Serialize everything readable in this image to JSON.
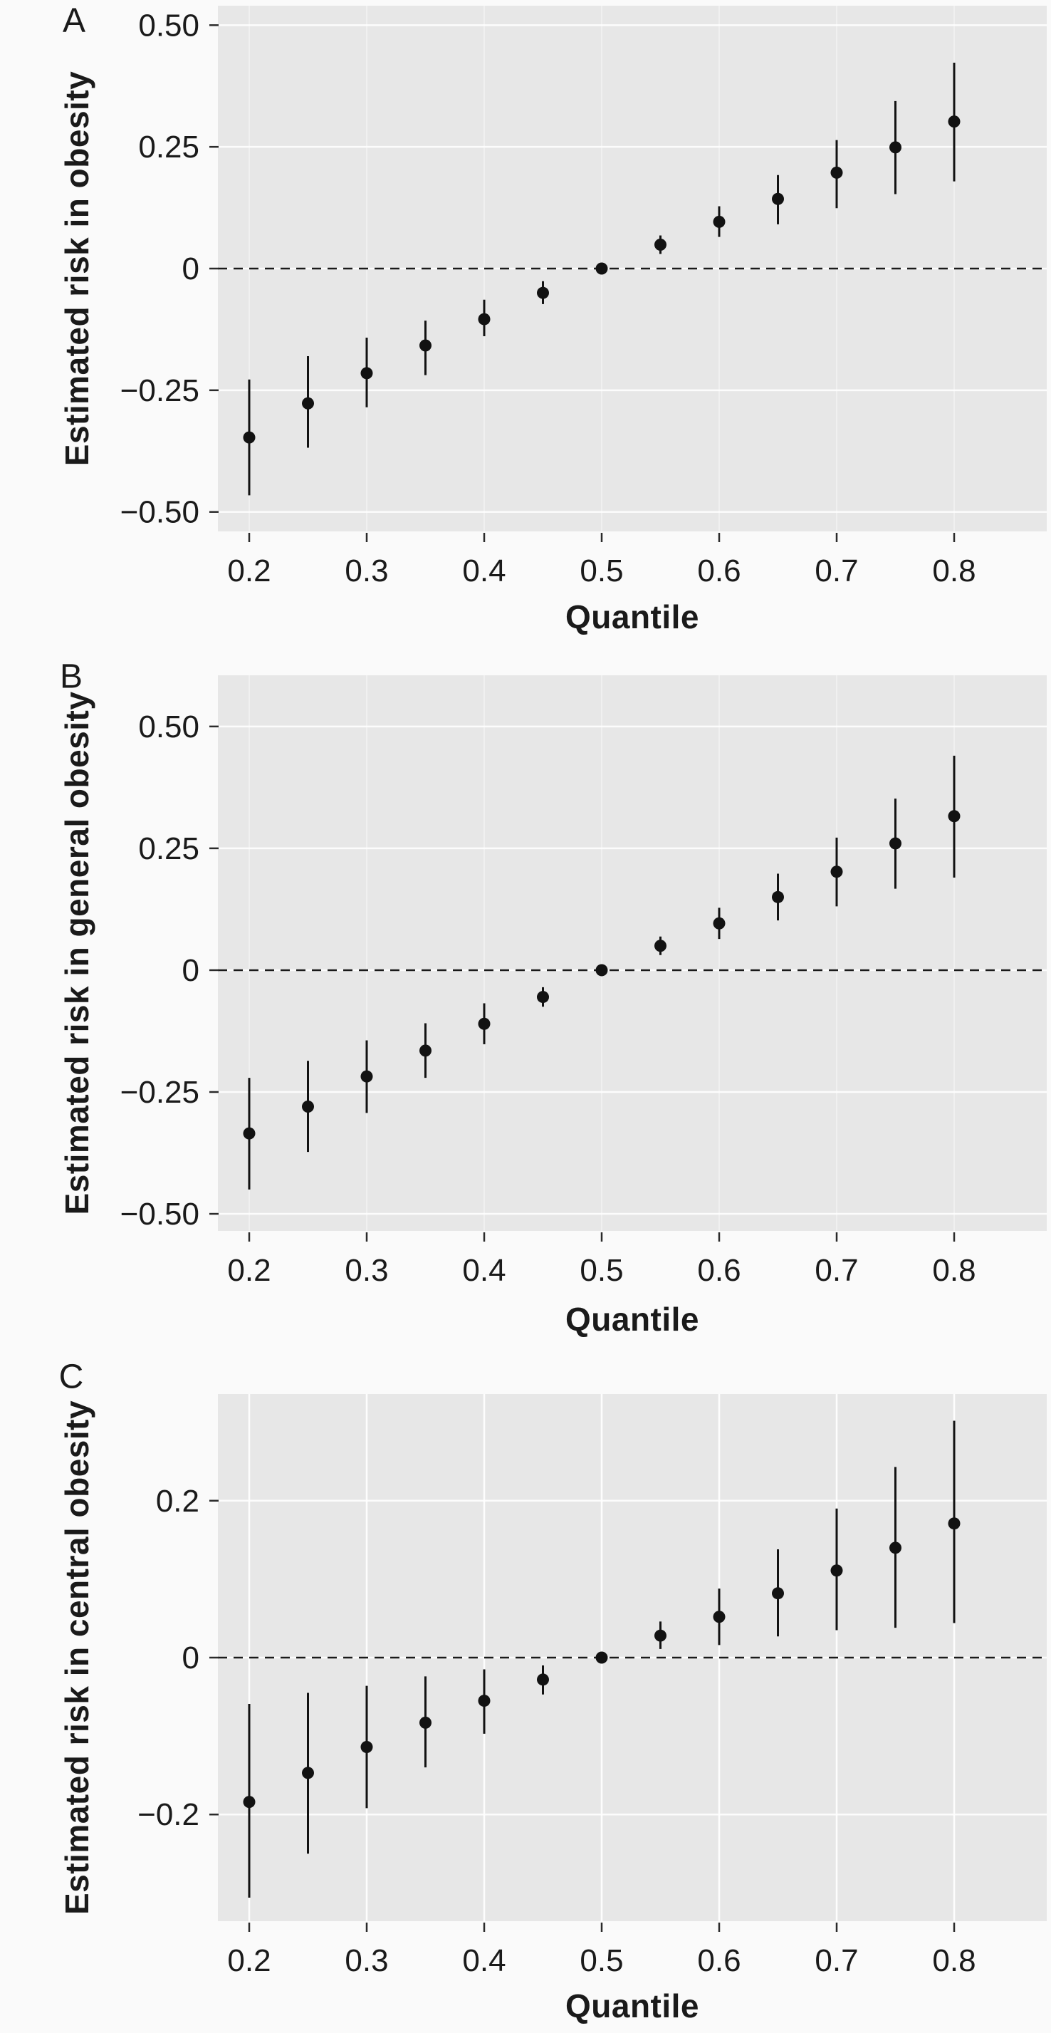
{
  "style": {
    "page_bg": "#fafafa",
    "panel_bg": "#e7e7e7",
    "grid_color": "#ffffff",
    "point_color": "#121212",
    "tick_color": "#2b2b2b",
    "text_color": "#1a1a1a"
  },
  "chart_data": [
    {
      "panel": "A",
      "type": "scatter",
      "title": "",
      "xlabel": "Quantile",
      "ylabel": "Estimated risk in obesity",
      "grid": true,
      "legend": null,
      "zero_line": "dashed",
      "xlim": [
        0.173,
        0.879
      ],
      "ylim": [
        -0.54,
        0.54
      ],
      "x_ticks": [
        0.2,
        0.3,
        0.4,
        0.5,
        0.6,
        0.7,
        0.8
      ],
      "x_tick_labels": [
        "0.2",
        "0.3",
        "0.4",
        "0.5",
        "0.6",
        "0.7",
        "0.8"
      ],
      "y_tick_values": [
        0.5,
        0.25,
        0,
        -0.25,
        -0.5
      ],
      "y_tick_labels": [
        "0.50",
        "0.25",
        "0",
        "−0.25",
        "−0.50"
      ],
      "x": [
        0.2,
        0.25,
        0.3,
        0.35,
        0.4,
        0.45,
        0.5,
        0.55,
        0.6,
        0.65,
        0.7,
        0.75,
        0.8
      ],
      "estimate": [
        -0.347,
        -0.277,
        -0.215,
        -0.158,
        -0.104,
        -0.05,
        0.0,
        0.049,
        0.096,
        0.143,
        0.197,
        0.249,
        0.302
      ],
      "ci_low": [
        -0.466,
        -0.368,
        -0.285,
        -0.219,
        -0.139,
        -0.073,
        -0.005,
        0.03,
        0.065,
        0.091,
        0.124,
        0.153,
        0.179
      ],
      "ci_high": [
        -0.228,
        -0.18,
        -0.142,
        -0.107,
        -0.064,
        -0.026,
        0.005,
        0.068,
        0.128,
        0.192,
        0.264,
        0.344,
        0.423
      ]
    },
    {
      "panel": "B",
      "type": "scatter",
      "title": "",
      "xlabel": "Quantile",
      "ylabel": "Estimated risk in general obesity",
      "grid": true,
      "legend": null,
      "zero_line": "dashed",
      "xlim": [
        0.173,
        0.879
      ],
      "ylim": [
        -0.535,
        0.605
      ],
      "x_ticks": [
        0.2,
        0.3,
        0.4,
        0.5,
        0.6,
        0.7,
        0.8
      ],
      "x_tick_labels": [
        "0.2",
        "0.3",
        "0.4",
        "0.5",
        "0.6",
        "0.7",
        "0.8"
      ],
      "y_tick_values": [
        0.5,
        0.25,
        0,
        -0.25,
        -0.5
      ],
      "y_tick_labels": [
        "0.50",
        "0.25",
        "0",
        "−0.25",
        "−0.50"
      ],
      "x": [
        0.2,
        0.25,
        0.3,
        0.35,
        0.4,
        0.45,
        0.5,
        0.55,
        0.6,
        0.65,
        0.7,
        0.75,
        0.8
      ],
      "estimate": [
        -0.335,
        -0.28,
        -0.218,
        -0.165,
        -0.11,
        -0.055,
        0.0,
        0.05,
        0.096,
        0.15,
        0.202,
        0.26,
        0.316
      ],
      "ci_low": [
        -0.45,
        -0.373,
        -0.293,
        -0.221,
        -0.152,
        -0.075,
        -0.005,
        0.031,
        0.064,
        0.102,
        0.131,
        0.167,
        0.19
      ],
      "ci_high": [
        -0.221,
        -0.186,
        -0.144,
        -0.109,
        -0.068,
        -0.035,
        0.005,
        0.069,
        0.128,
        0.198,
        0.272,
        0.352,
        0.44
      ]
    },
    {
      "panel": "C",
      "type": "scatter",
      "title": "",
      "xlabel": "Quantile",
      "ylabel": "Estimated risk in central obesity",
      "grid": true,
      "legend": null,
      "zero_line": "dashed",
      "xlim": [
        0.173,
        0.879
      ],
      "ylim": [
        -0.336,
        0.336
      ],
      "x_ticks": [
        0.2,
        0.3,
        0.4,
        0.5,
        0.6,
        0.7,
        0.8
      ],
      "x_tick_labels": [
        "0.2",
        "0.3",
        "0.4",
        "0.5",
        "0.6",
        "0.7",
        "0.8"
      ],
      "y_tick_values": [
        0.2,
        0,
        -0.2
      ],
      "y_tick_labels": [
        "0.2",
        "0",
        "−0.2"
      ],
      "x": [
        0.2,
        0.25,
        0.3,
        0.35,
        0.4,
        0.45,
        0.5,
        0.55,
        0.6,
        0.65,
        0.7,
        0.75,
        0.8
      ],
      "estimate": [
        -0.184,
        -0.147,
        -0.114,
        -0.083,
        -0.055,
        -0.028,
        0.0,
        0.028,
        0.052,
        0.082,
        0.111,
        0.14,
        0.171
      ],
      "ci_low": [
        -0.306,
        -0.25,
        -0.192,
        -0.14,
        -0.097,
        -0.047,
        -0.003,
        0.011,
        0.016,
        0.027,
        0.035,
        0.038,
        0.044
      ],
      "ci_high": [
        -0.059,
        -0.045,
        -0.036,
        -0.024,
        -0.015,
        -0.01,
        0.003,
        0.046,
        0.088,
        0.138,
        0.19,
        0.243,
        0.302
      ]
    }
  ]
}
